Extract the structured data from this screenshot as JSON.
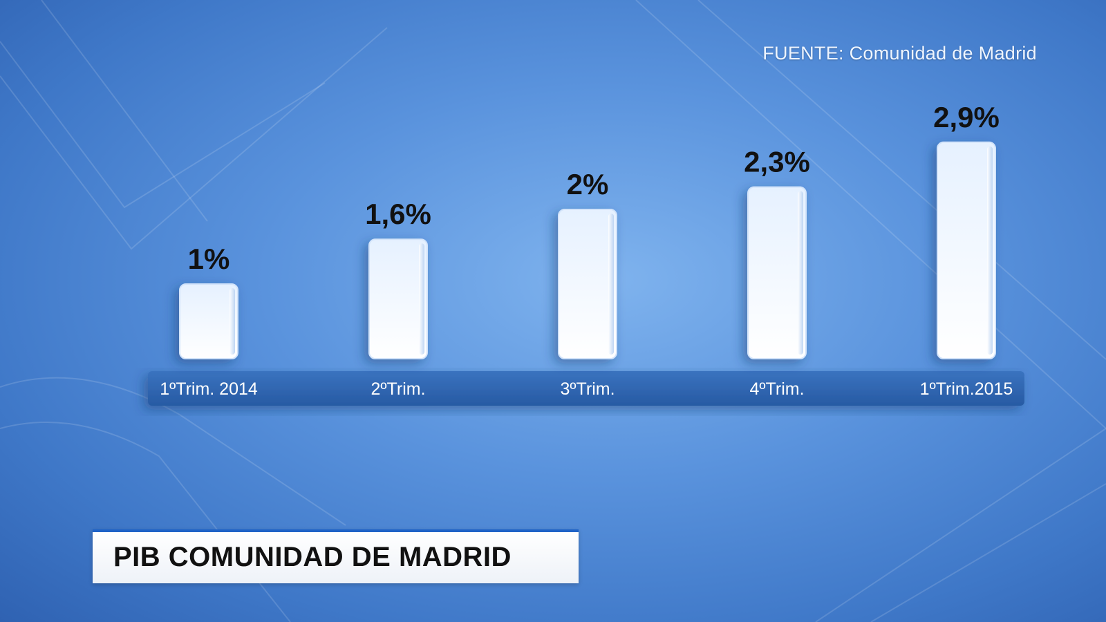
{
  "source": "FUENTE: Comunidad de Madrid",
  "title": "PIB COMUNIDAD DE MADRID",
  "colors": {
    "background": "#5a93dd",
    "axis_band": "#2f63ad",
    "bar_top": "#e9f3ff",
    "bar_bottom": "#ffffff",
    "title_accent": "#1f63c7"
  },
  "chart_data": {
    "type": "bar",
    "categories": [
      "1ºTrim. 2014",
      "2ºTrim.",
      "3ºTrim.",
      "4ºTrim.",
      "1ºTrim.2015"
    ],
    "values": [
      1.0,
      1.6,
      2.0,
      2.3,
      2.9
    ],
    "value_labels": [
      "1%",
      "1,6%",
      "2%",
      "2,3%",
      "2,9%"
    ],
    "ylim": [
      0,
      3.0
    ],
    "grid": false,
    "legend": "none"
  }
}
